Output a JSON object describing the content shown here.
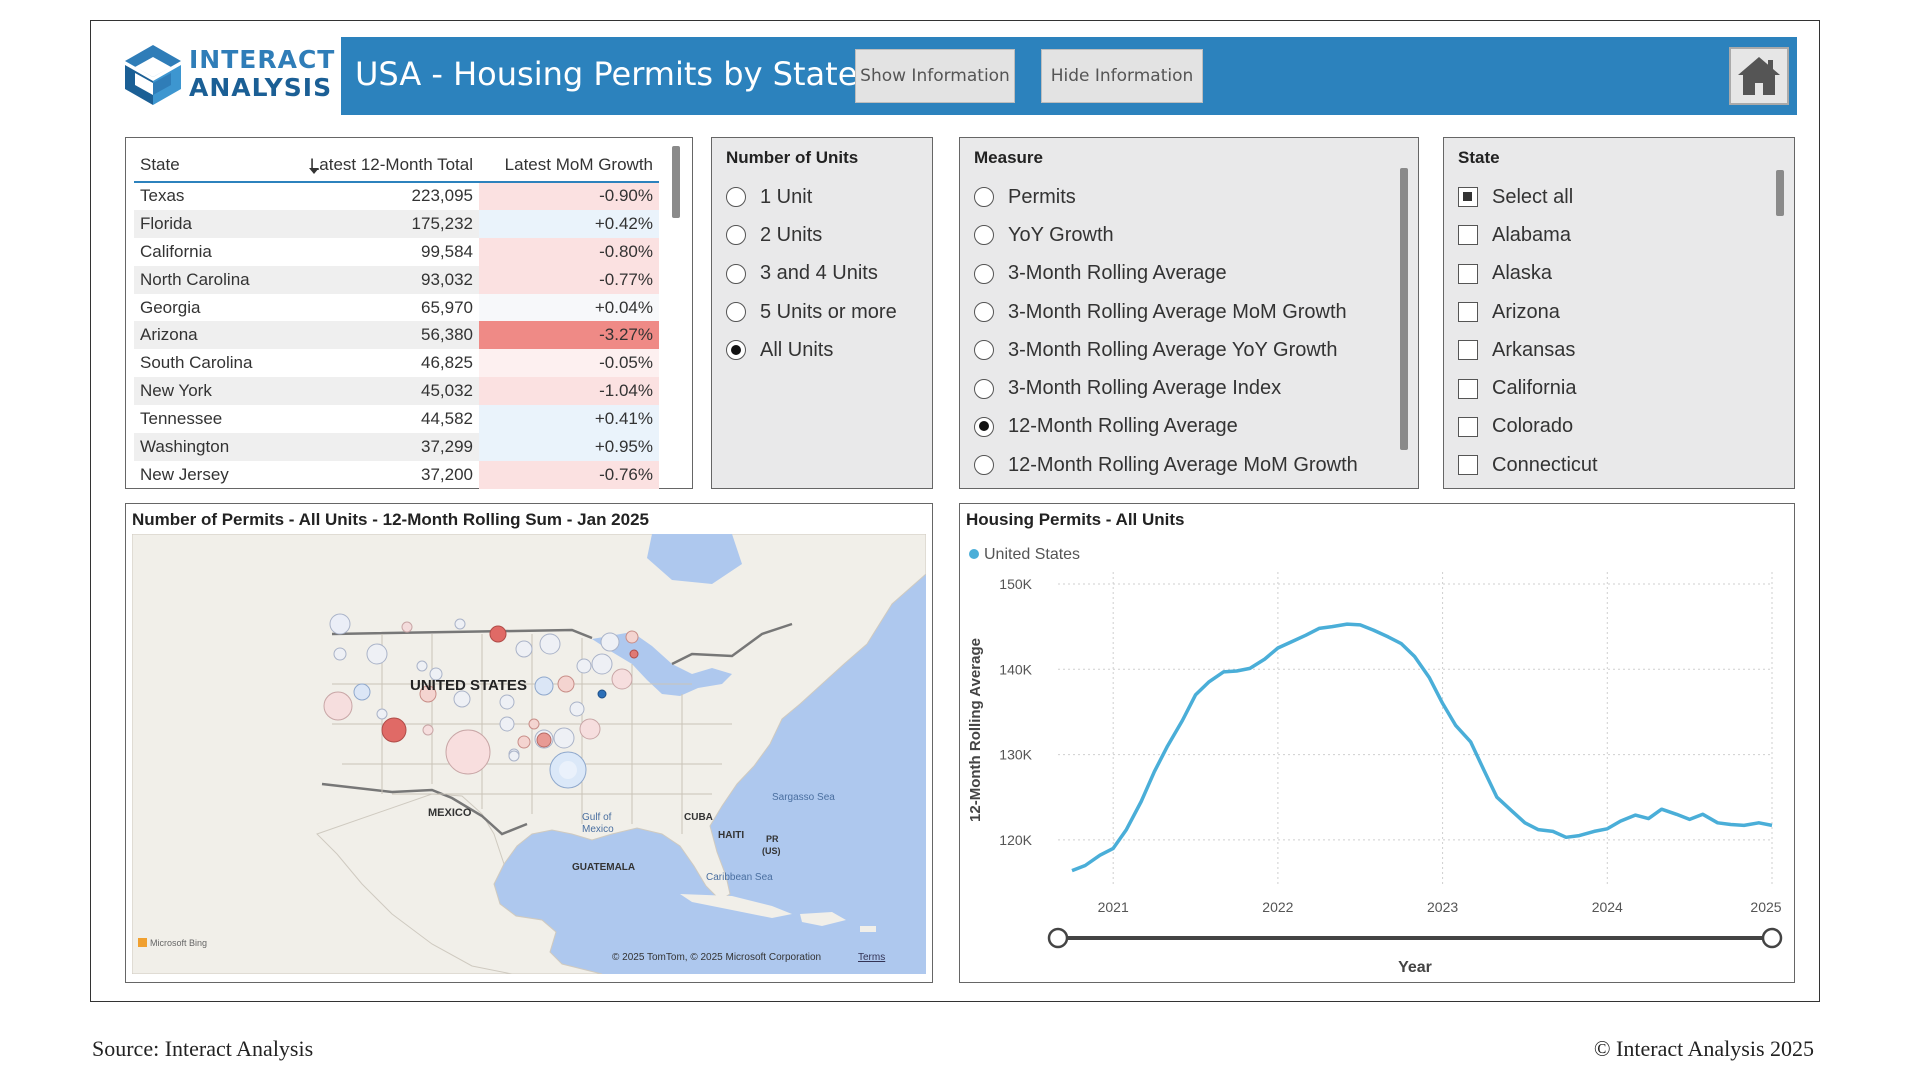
{
  "header": {
    "logo_line1": "INTERACT",
    "logo_line2": "ANALYSIS",
    "title": "USA - Housing Permits by State",
    "show_button": "Show Information",
    "hide_button": "Hide Information",
    "home_icon": "home-icon"
  },
  "table": {
    "columns": [
      "State",
      "Latest 12-Month Total",
      "Latest MoM Growth"
    ],
    "rows": [
      {
        "state": "Texas",
        "total": "223,095",
        "growth": "-0.90%",
        "g": -0.9
      },
      {
        "state": "Florida",
        "total": "175,232",
        "growth": "+0.42%",
        "g": 0.42
      },
      {
        "state": "California",
        "total": "99,584",
        "growth": "-0.80%",
        "g": -0.8
      },
      {
        "state": "North Carolina",
        "total": "93,032",
        "growth": "-0.77%",
        "g": -0.77
      },
      {
        "state": "Georgia",
        "total": "65,970",
        "growth": "+0.04%",
        "g": 0.04
      },
      {
        "state": "Arizona",
        "total": "56,380",
        "growth": "-3.27%",
        "g": -3.27
      },
      {
        "state": "South Carolina",
        "total": "46,825",
        "growth": "-0.05%",
        "g": -0.05
      },
      {
        "state": "New York",
        "total": "45,032",
        "growth": "-1.04%",
        "g": -1.04
      },
      {
        "state": "Tennessee",
        "total": "44,582",
        "growth": "+0.41%",
        "g": 0.41
      },
      {
        "state": "Washington",
        "total": "37,299",
        "growth": "+0.95%",
        "g": 0.95
      },
      {
        "state": "New Jersey",
        "total": "37,200",
        "growth": "-0.76%",
        "g": -0.76
      }
    ]
  },
  "units_slicer": {
    "title": "Number of Units",
    "options": [
      {
        "label": "1 Unit",
        "selected": false
      },
      {
        "label": "2 Units",
        "selected": false
      },
      {
        "label": "3 and 4 Units",
        "selected": false
      },
      {
        "label": "5 Units or more",
        "selected": false
      },
      {
        "label": "All Units",
        "selected": true
      }
    ]
  },
  "measure_slicer": {
    "title": "Measure",
    "options": [
      {
        "label": "Permits",
        "selected": false
      },
      {
        "label": "YoY Growth",
        "selected": false
      },
      {
        "label": "3-Month Rolling Average",
        "selected": false
      },
      {
        "label": "3-Month Rolling Average MoM Growth",
        "selected": false
      },
      {
        "label": "3-Month Rolling Average YoY Growth",
        "selected": false
      },
      {
        "label": "3-Month Rolling Average Index",
        "selected": false
      },
      {
        "label": "12-Month Rolling Average",
        "selected": true
      },
      {
        "label": "12-Month Rolling Average MoM Growth",
        "selected": false
      }
    ]
  },
  "state_slicer": {
    "title": "State",
    "options": [
      {
        "label": "Select all",
        "state": "partial"
      },
      {
        "label": "Alabama",
        "state": "off"
      },
      {
        "label": "Alaska",
        "state": "off"
      },
      {
        "label": "Arizona",
        "state": "off"
      },
      {
        "label": "Arkansas",
        "state": "off"
      },
      {
        "label": "California",
        "state": "off"
      },
      {
        "label": "Colorado",
        "state": "off"
      },
      {
        "label": "Connecticut",
        "state": "off"
      }
    ]
  },
  "map": {
    "title": "Number of Permits - All Units - 12-Month Rolling Sum - Jan 2025",
    "labels": {
      "country": "UNITED STATES",
      "mexico": "MEXICO",
      "cuba": "CUBA",
      "haiti": "HAITI",
      "pr": "PR",
      "pr_us": "(US)",
      "guatemala": "GUATEMALA",
      "gulf1": "Gulf of",
      "gulf2": "Mexico",
      "sargasso": "Sargasso Sea",
      "caribbean": "Caribbean Sea",
      "bing": "Microsoft Bing",
      "copyright": "© 2025 TomTom, © 2025 Microsoft Corporation",
      "terms": "Terms"
    },
    "colors": {
      "water": "#aec8ee",
      "land": "#f1efe9",
      "negative": "#e07a75",
      "positive": "#9ec3e6"
    }
  },
  "chart_data": {
    "type": "line",
    "title": "Housing Permits - All Units",
    "xlabel": "Year",
    "ylabel": "12-Month Rolling Average",
    "legend_position": "top-left",
    "ylim": [
      116,
      150
    ],
    "xlim": [
      2020.75,
      2025.0
    ],
    "ytick_labels": [
      "120K",
      "130K",
      "140K",
      "150K"
    ],
    "yticks": [
      120,
      130,
      140,
      150
    ],
    "xticks": [
      2021,
      2022,
      2023,
      2024,
      2025
    ],
    "xtick_labels": [
      "2021",
      "2022",
      "2023",
      "2024",
      "2025"
    ],
    "grid": true,
    "color": "#4aaed8",
    "series": [
      {
        "name": "United States",
        "values_unit": "thousand permits",
        "x": [
          2020.75,
          2020.83,
          2020.92,
          2021.0,
          2021.08,
          2021.17,
          2021.25,
          2021.33,
          2021.42,
          2021.5,
          2021.58,
          2021.67,
          2021.75,
          2021.83,
          2021.92,
          2022.0,
          2022.08,
          2022.17,
          2022.25,
          2022.33,
          2022.42,
          2022.5,
          2022.58,
          2022.67,
          2022.75,
          2022.83,
          2022.92,
          2023.0,
          2023.08,
          2023.17,
          2023.25,
          2023.33,
          2023.42,
          2023.5,
          2023.58,
          2023.67,
          2023.75,
          2023.83,
          2023.92,
          2024.0,
          2024.08,
          2024.17,
          2024.25,
          2024.33,
          2024.42,
          2024.5,
          2024.58,
          2024.67,
          2024.75,
          2024.83,
          2024.92,
          2025.0
        ],
        "values": [
          116.4,
          117.0,
          118.2,
          119.0,
          121.2,
          124.5,
          128.0,
          131.0,
          134.0,
          137.0,
          138.5,
          139.7,
          139.8,
          140.1,
          141.2,
          142.5,
          143.2,
          144.0,
          144.8,
          145.0,
          145.3,
          145.2,
          144.6,
          143.8,
          143.0,
          141.5,
          139.0,
          136.0,
          133.4,
          131.5,
          128.2,
          125.0,
          123.4,
          122.0,
          121.2,
          121.0,
          120.3,
          120.5,
          121.0,
          121.3,
          122.2,
          122.9,
          122.5,
          123.6,
          123.0,
          122.4,
          123.0,
          122.0,
          121.8,
          121.7,
          122.0,
          121.7
        ]
      }
    ]
  },
  "footer": {
    "source": "Source: Interact Analysis",
    "copyright": "© Interact Analysis 2025"
  }
}
